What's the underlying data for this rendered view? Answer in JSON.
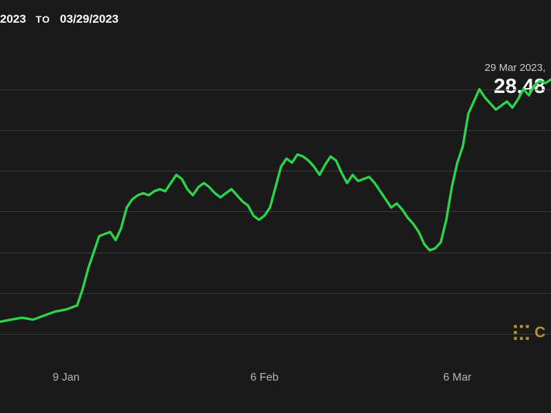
{
  "header": {
    "from_date": "2023",
    "to_label": "TO",
    "to_date": "03/29/2023"
  },
  "tooltip": {
    "date": "29 Mar 2023,",
    "value": "28,48"
  },
  "watermark": {
    "text": "C"
  },
  "chart": {
    "type": "line",
    "line_color": "#2dd44b",
    "line_width": 3.5,
    "background_color": "#1a1a1a",
    "grid_color": "#3a3a3a",
    "ylim": [
      15500,
      29000
    ],
    "grid_y_values": [
      16000,
      18000,
      20000,
      22000,
      24000,
      26000,
      28000
    ],
    "x_ticks": [
      {
        "label": "9 Jan",
        "pos_pct": 12
      },
      {
        "label": "6 Feb",
        "pos_pct": 48
      },
      {
        "label": "6 Mar",
        "pos_pct": 83
      }
    ],
    "series": [
      {
        "x": 0,
        "y": 16600
      },
      {
        "x": 2,
        "y": 16700
      },
      {
        "x": 4,
        "y": 16800
      },
      {
        "x": 6,
        "y": 16700
      },
      {
        "x": 8,
        "y": 16900
      },
      {
        "x": 10,
        "y": 17100
      },
      {
        "x": 12,
        "y": 17200
      },
      {
        "x": 14,
        "y": 17400
      },
      {
        "x": 15,
        "y": 18200
      },
      {
        "x": 16,
        "y": 19200
      },
      {
        "x": 17,
        "y": 20000
      },
      {
        "x": 18,
        "y": 20800
      },
      {
        "x": 19,
        "y": 20900
      },
      {
        "x": 20,
        "y": 21000
      },
      {
        "x": 21,
        "y": 20600
      },
      {
        "x": 22,
        "y": 21200
      },
      {
        "x": 23,
        "y": 22200
      },
      {
        "x": 24,
        "y": 22600
      },
      {
        "x": 25,
        "y": 22800
      },
      {
        "x": 26,
        "y": 22900
      },
      {
        "x": 27,
        "y": 22800
      },
      {
        "x": 28,
        "y": 23000
      },
      {
        "x": 29,
        "y": 23100
      },
      {
        "x": 30,
        "y": 23000
      },
      {
        "x": 31,
        "y": 23400
      },
      {
        "x": 32,
        "y": 23800
      },
      {
        "x": 33,
        "y": 23600
      },
      {
        "x": 34,
        "y": 23100
      },
      {
        "x": 35,
        "y": 22800
      },
      {
        "x": 36,
        "y": 23200
      },
      {
        "x": 37,
        "y": 23400
      },
      {
        "x": 38,
        "y": 23200
      },
      {
        "x": 39,
        "y": 22900
      },
      {
        "x": 40,
        "y": 22700
      },
      {
        "x": 41,
        "y": 22900
      },
      {
        "x": 42,
        "y": 23100
      },
      {
        "x": 43,
        "y": 22800
      },
      {
        "x": 44,
        "y": 22500
      },
      {
        "x": 45,
        "y": 22300
      },
      {
        "x": 46,
        "y": 21800
      },
      {
        "x": 47,
        "y": 21600
      },
      {
        "x": 48,
        "y": 21800
      },
      {
        "x": 49,
        "y": 22200
      },
      {
        "x": 50,
        "y": 23200
      },
      {
        "x": 51,
        "y": 24200
      },
      {
        "x": 52,
        "y": 24600
      },
      {
        "x": 53,
        "y": 24400
      },
      {
        "x": 54,
        "y": 24800
      },
      {
        "x": 55,
        "y": 24700
      },
      {
        "x": 56,
        "y": 24500
      },
      {
        "x": 57,
        "y": 24200
      },
      {
        "x": 58,
        "y": 23800
      },
      {
        "x": 59,
        "y": 24300
      },
      {
        "x": 60,
        "y": 24700
      },
      {
        "x": 61,
        "y": 24500
      },
      {
        "x": 62,
        "y": 23900
      },
      {
        "x": 63,
        "y": 23400
      },
      {
        "x": 64,
        "y": 23800
      },
      {
        "x": 65,
        "y": 23500
      },
      {
        "x": 66,
        "y": 23600
      },
      {
        "x": 67,
        "y": 23700
      },
      {
        "x": 68,
        "y": 23400
      },
      {
        "x": 69,
        "y": 23000
      },
      {
        "x": 70,
        "y": 22600
      },
      {
        "x": 71,
        "y": 22200
      },
      {
        "x": 72,
        "y": 22400
      },
      {
        "x": 73,
        "y": 22100
      },
      {
        "x": 74,
        "y": 21700
      },
      {
        "x": 75,
        "y": 21400
      },
      {
        "x": 76,
        "y": 21000
      },
      {
        "x": 77,
        "y": 20400
      },
      {
        "x": 78,
        "y": 20100
      },
      {
        "x": 79,
        "y": 20200
      },
      {
        "x": 80,
        "y": 20500
      },
      {
        "x": 81,
        "y": 21600
      },
      {
        "x": 82,
        "y": 23200
      },
      {
        "x": 83,
        "y": 24400
      },
      {
        "x": 84,
        "y": 25200
      },
      {
        "x": 85,
        "y": 26800
      },
      {
        "x": 86,
        "y": 27400
      },
      {
        "x": 87,
        "y": 28000
      },
      {
        "x": 88,
        "y": 27600
      },
      {
        "x": 89,
        "y": 27300
      },
      {
        "x": 90,
        "y": 27000
      },
      {
        "x": 91,
        "y": 27200
      },
      {
        "x": 92,
        "y": 27400
      },
      {
        "x": 93,
        "y": 27100
      },
      {
        "x": 94,
        "y": 27500
      },
      {
        "x": 95,
        "y": 28000
      },
      {
        "x": 96,
        "y": 27700
      },
      {
        "x": 97,
        "y": 28200
      },
      {
        "x": 98,
        "y": 28400
      },
      {
        "x": 99,
        "y": 28300
      },
      {
        "x": 100,
        "y": 28480
      }
    ]
  }
}
